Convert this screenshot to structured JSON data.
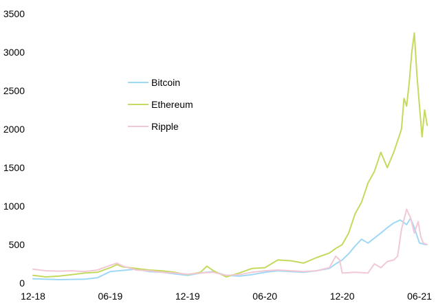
{
  "chart_data": {
    "type": "line",
    "title": "",
    "xlabel": "",
    "ylabel": "",
    "ylim": [
      0,
      3500
    ],
    "yticks": [
      0,
      500,
      1000,
      1500,
      2000,
      2500,
      3000,
      3500
    ],
    "xticks": [
      "12-18",
      "06-19",
      "12-19",
      "06-20",
      "12-20",
      "06-21"
    ],
    "grid": false,
    "legend_position": "upper-left-center",
    "series": [
      {
        "name": "Bitcoin",
        "color": "#9ed8f7",
        "points": [
          [
            0,
            55
          ],
          [
            2,
            45
          ],
          [
            4,
            50
          ],
          [
            5,
            70
          ],
          [
            6,
            150
          ],
          [
            7,
            165
          ],
          [
            8,
            180
          ],
          [
            9,
            150
          ],
          [
            10,
            140
          ],
          [
            11,
            120
          ],
          [
            12,
            100
          ],
          [
            13,
            130
          ],
          [
            14,
            150
          ],
          [
            15,
            100
          ],
          [
            16,
            90
          ],
          [
            17,
            110
          ],
          [
            18,
            140
          ],
          [
            19,
            160
          ],
          [
            20,
            150
          ],
          [
            21,
            140
          ],
          [
            22,
            160
          ],
          [
            23,
            190
          ],
          [
            23.5,
            250
          ],
          [
            24,
            300
          ],
          [
            24.5,
            380
          ],
          [
            25,
            480
          ],
          [
            25.5,
            570
          ],
          [
            26,
            520
          ],
          [
            27,
            650
          ],
          [
            27.5,
            720
          ],
          [
            28,
            780
          ],
          [
            28.5,
            820
          ],
          [
            29,
            760
          ],
          [
            29.3,
            840
          ],
          [
            29.6,
            720
          ],
          [
            30,
            520
          ],
          [
            30.5,
            500
          ]
        ]
      },
      {
        "name": "Ethereum",
        "color": "#c5d95c",
        "points": [
          [
            0,
            100
          ],
          [
            1,
            80
          ],
          [
            2,
            90
          ],
          [
            3,
            110
          ],
          [
            4,
            130
          ],
          [
            5,
            140
          ],
          [
            6,
            200
          ],
          [
            6.5,
            240
          ],
          [
            7,
            210
          ],
          [
            8,
            190
          ],
          [
            9,
            170
          ],
          [
            10,
            160
          ],
          [
            11,
            140
          ],
          [
            12,
            110
          ],
          [
            13,
            140
          ],
          [
            13.5,
            220
          ],
          [
            14,
            160
          ],
          [
            15,
            80
          ],
          [
            16,
            130
          ],
          [
            17,
            190
          ],
          [
            18,
            200
          ],
          [
            19,
            300
          ],
          [
            20,
            290
          ],
          [
            21,
            260
          ],
          [
            22,
            330
          ],
          [
            23,
            390
          ],
          [
            23.5,
            450
          ],
          [
            24,
            500
          ],
          [
            24.5,
            650
          ],
          [
            25,
            900
          ],
          [
            25.5,
            1050
          ],
          [
            26,
            1300
          ],
          [
            26.5,
            1450
          ],
          [
            27,
            1700
          ],
          [
            27.5,
            1500
          ],
          [
            28,
            1700
          ],
          [
            28.3,
            1850
          ],
          [
            28.6,
            2000
          ],
          [
            28.8,
            2400
          ],
          [
            29,
            2300
          ],
          [
            29.2,
            2600
          ],
          [
            29.4,
            3000
          ],
          [
            29.6,
            3250
          ],
          [
            29.8,
            2700
          ],
          [
            30.0,
            2300
          ],
          [
            30.2,
            1900
          ],
          [
            30.4,
            2250
          ],
          [
            30.6,
            2050
          ]
        ]
      },
      {
        "name": "Ripple",
        "color": "#f2c8d6",
        "points": [
          [
            0,
            180
          ],
          [
            1,
            160
          ],
          [
            2,
            155
          ],
          [
            3,
            160
          ],
          [
            4,
            150
          ],
          [
            5,
            170
          ],
          [
            6,
            230
          ],
          [
            6.5,
            260
          ],
          [
            7,
            220
          ],
          [
            8,
            170
          ],
          [
            9,
            160
          ],
          [
            10,
            140
          ],
          [
            11,
            130
          ],
          [
            12,
            115
          ],
          [
            13,
            130
          ],
          [
            14,
            140
          ],
          [
            15,
            100
          ],
          [
            16,
            110
          ],
          [
            17,
            140
          ],
          [
            18,
            160
          ],
          [
            19,
            170
          ],
          [
            20,
            160
          ],
          [
            21,
            150
          ],
          [
            22,
            160
          ],
          [
            23,
            200
          ],
          [
            23.5,
            350
          ],
          [
            23.8,
            300
          ],
          [
            24,
            130
          ],
          [
            25,
            140
          ],
          [
            26,
            130
          ],
          [
            26.5,
            250
          ],
          [
            27,
            200
          ],
          [
            27.5,
            280
          ],
          [
            28,
            300
          ],
          [
            28.3,
            350
          ],
          [
            28.6,
            700
          ],
          [
            29,
            960
          ],
          [
            29.3,
            850
          ],
          [
            29.6,
            650
          ],
          [
            29.9,
            800
          ],
          [
            30.1,
            600
          ],
          [
            30.3,
            520
          ],
          [
            30.6,
            500
          ]
        ]
      }
    ]
  }
}
